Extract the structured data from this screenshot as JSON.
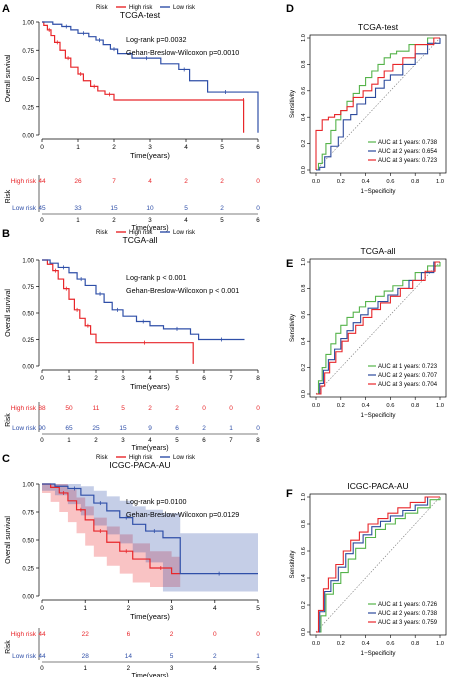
{
  "colors": {
    "high": "#e8262a",
    "low": "#2f4fa8",
    "auc1": "#55b34a",
    "auc2": "#2c4a9c",
    "auc3": "#e8262a",
    "axis": "#000000"
  },
  "chart_data": [
    {
      "panel": "A",
      "type": "line",
      "title": "TCGA-test",
      "legend_title": "Risk",
      "legend": [
        "High risk",
        "Low risk"
      ],
      "xlabel": "Time(years)",
      "ylabel": "Overall survival",
      "xlim": [
        0,
        6
      ],
      "ylim": [
        0,
        1
      ],
      "xticks": [
        0,
        1,
        2,
        3,
        4,
        5,
        6
      ],
      "yticks": [
        "0.00",
        "0.25",
        "0.50",
        "0.75",
        "1.00"
      ],
      "annotations": [
        "Log-rank p=0.0032",
        "Gehan-Breslow-Wilcoxon p=0.0010"
      ],
      "series": [
        {
          "name": "High risk",
          "x": [
            0,
            0.05,
            0.15,
            0.25,
            0.35,
            0.5,
            0.65,
            0.8,
            1.0,
            1.15,
            1.35,
            1.55,
            1.75,
            2.0,
            5.6,
            5.6
          ],
          "y": [
            1.0,
            0.97,
            0.93,
            0.88,
            0.82,
            0.75,
            0.68,
            0.6,
            0.54,
            0.48,
            0.43,
            0.39,
            0.36,
            0.31,
            0.31,
            0.02
          ]
        },
        {
          "name": "Low risk",
          "x": [
            0,
            0.3,
            0.55,
            0.8,
            1.0,
            1.3,
            1.5,
            1.7,
            1.9,
            2.1,
            2.5,
            3.3,
            3.8,
            4.1,
            4.6,
            5.6,
            6.0
          ],
          "y": [
            1.0,
            0.98,
            0.96,
            0.93,
            0.9,
            0.87,
            0.84,
            0.8,
            0.76,
            0.72,
            0.68,
            0.63,
            0.58,
            0.48,
            0.38,
            0.38,
            0.02
          ]
        }
      ],
      "risk_table": {
        "label": "Risk",
        "times": [
          0,
          1,
          2,
          3,
          4,
          5,
          6
        ],
        "rows": [
          {
            "name": "High risk",
            "values": [
              "44",
              "26",
              "7",
              "4",
              "2",
              "2",
              "0"
            ]
          },
          {
            "name": "Low risk",
            "values": [
              "45",
              "33",
              "15",
              "10",
              "5",
              "2",
              "0"
            ]
          }
        ],
        "xlabel": "Time(years)"
      }
    },
    {
      "panel": "B",
      "type": "line",
      "title": "TCGA-all",
      "legend_title": "Risk",
      "legend": [
        "High risk",
        "Low risk"
      ],
      "xlabel": "Time(years)",
      "ylabel": "Overall survival",
      "xlim": [
        0,
        8
      ],
      "ylim": [
        0,
        1
      ],
      "xticks": [
        0,
        1,
        2,
        3,
        4,
        5,
        6,
        7,
        8
      ],
      "yticks": [
        "0.00",
        "0.25",
        "0.50",
        "0.75",
        "1.00"
      ],
      "annotations": [
        "Log-rank p < 0.001",
        "Gehan-Breslow-Wilcoxon p < 0.001"
      ],
      "series": [
        {
          "name": "High risk",
          "x": [
            0,
            0.2,
            0.4,
            0.6,
            0.8,
            1.0,
            1.2,
            1.4,
            1.6,
            1.8,
            2.0,
            5.6,
            5.6
          ],
          "y": [
            1.0,
            0.96,
            0.9,
            0.82,
            0.73,
            0.63,
            0.53,
            0.45,
            0.38,
            0.3,
            0.22,
            0.22,
            0.02
          ]
        },
        {
          "name": "Low risk",
          "x": [
            0,
            0.3,
            0.6,
            1.0,
            1.3,
            1.6,
            2.0,
            2.3,
            2.6,
            3.0,
            3.5,
            4.0,
            4.5,
            5.5,
            5.8,
            7.5
          ],
          "y": [
            1.0,
            0.97,
            0.93,
            0.88,
            0.82,
            0.76,
            0.68,
            0.6,
            0.53,
            0.47,
            0.42,
            0.38,
            0.35,
            0.3,
            0.25,
            0.25
          ]
        }
      ],
      "risk_table": {
        "label": "Risk",
        "times": [
          0,
          1,
          2,
          3,
          4,
          5,
          6,
          7,
          8
        ],
        "rows": [
          {
            "name": "High risk",
            "values": [
              "88",
              "50",
              "11",
              "5",
              "2",
              "2",
              "0",
              "0",
              "0"
            ]
          },
          {
            "name": "Low risk",
            "values": [
              "90",
              "65",
              "25",
              "15",
              "9",
              "6",
              "2",
              "1",
              "0"
            ]
          }
        ],
        "xlabel": "Time(years)"
      }
    },
    {
      "panel": "C",
      "type": "area",
      "title": "ICGC-PACA-AU",
      "legend_title": "Risk",
      "legend": [
        "High risk",
        "Low risk"
      ],
      "xlabel": "Time(years)",
      "ylabel": "Overall survival",
      "xlim": [
        0,
        5
      ],
      "ylim": [
        0,
        1
      ],
      "xticks": [
        0,
        1,
        2,
        3,
        4,
        5
      ],
      "yticks": [
        "0.00",
        "0.25",
        "0.50",
        "0.75",
        "1.00"
      ],
      "annotations": [
        "Log-rank p=0.0100",
        "Gehan-Breslow-Wilcoxon p=0.0129"
      ],
      "series": [
        {
          "name": "High risk",
          "x": [
            0,
            0.2,
            0.4,
            0.6,
            0.8,
            1.0,
            1.2,
            1.5,
            1.8,
            2.1,
            2.5,
            3.0,
            3.2
          ],
          "y": [
            1.0,
            0.97,
            0.92,
            0.85,
            0.77,
            0.68,
            0.58,
            0.48,
            0.4,
            0.33,
            0.25,
            0.2,
            0.2
          ],
          "lower": [
            1.0,
            0.92,
            0.84,
            0.75,
            0.66,
            0.56,
            0.45,
            0.35,
            0.27,
            0.2,
            0.12,
            0.08,
            0.08
          ],
          "upper": [
            1.0,
            1.0,
            1.0,
            0.95,
            0.88,
            0.8,
            0.7,
            0.62,
            0.55,
            0.47,
            0.4,
            0.35,
            0.35
          ]
        },
        {
          "name": "Low risk",
          "x": [
            0,
            0.3,
            0.6,
            0.9,
            1.2,
            1.5,
            1.8,
            2.1,
            2.4,
            2.8,
            3.2,
            5.0
          ],
          "y": [
            1.0,
            0.98,
            0.96,
            0.9,
            0.83,
            0.76,
            0.7,
            0.64,
            0.58,
            0.52,
            0.2,
            0.2
          ],
          "lower": [
            1.0,
            0.94,
            0.9,
            0.82,
            0.72,
            0.63,
            0.55,
            0.47,
            0.39,
            0.3,
            0.04,
            0.04
          ],
          "upper": [
            1.0,
            1.0,
            1.0,
            0.98,
            0.94,
            0.89,
            0.85,
            0.8,
            0.77,
            0.74,
            0.56,
            0.56
          ]
        }
      ],
      "risk_table": {
        "label": "Risk",
        "times": [
          0,
          1,
          2,
          3,
          4,
          5
        ],
        "rows": [
          {
            "name": "High risk",
            "values": [
              "44",
              "22",
              "6",
              "2",
              "0",
              "0"
            ]
          },
          {
            "name": "Low risk",
            "values": [
              "44",
              "28",
              "14",
              "5",
              "2",
              "1"
            ]
          }
        ],
        "xlabel": "Time(years)"
      }
    },
    {
      "panel": "D",
      "type": "line",
      "title": "TCGA-test",
      "xlabel": "1−Specificity",
      "ylabel": "Sensitivity",
      "xlim": [
        0,
        1
      ],
      "ylim": [
        0,
        1
      ],
      "xticks": [
        "0.0",
        "0.2",
        "0.4",
        "0.6",
        "0.8",
        "1.0"
      ],
      "yticks": [
        "0.0",
        "0.2",
        "0.4",
        "0.6",
        "0.8",
        "1.0"
      ],
      "legend": [
        "AUC at 1 years: 0.738",
        "AUC at 2 years: 0.654",
        "AUC at 3 years: 0.723"
      ],
      "series": [
        {
          "x": [
            0,
            0.02,
            0.05,
            0.08,
            0.12,
            0.16,
            0.2,
            0.25,
            0.3,
            0.35,
            0.4,
            0.45,
            0.5,
            0.55,
            0.6,
            0.65,
            0.75,
            0.9,
            1.0
          ],
          "y": [
            0,
            0.05,
            0.12,
            0.2,
            0.3,
            0.38,
            0.45,
            0.52,
            0.58,
            0.64,
            0.7,
            0.75,
            0.8,
            0.85,
            0.88,
            0.9,
            0.95,
            1.0,
            1.0
          ]
        },
        {
          "x": [
            0,
            0.03,
            0.07,
            0.12,
            0.18,
            0.22,
            0.28,
            0.33,
            0.4,
            0.48,
            0.55,
            0.6,
            0.7,
            0.8,
            0.9,
            1.0
          ],
          "y": [
            0,
            0.02,
            0.1,
            0.18,
            0.25,
            0.38,
            0.42,
            0.5,
            0.55,
            0.62,
            0.68,
            0.72,
            0.8,
            0.88,
            0.96,
            1.0
          ]
        },
        {
          "x": [
            0,
            0.0,
            0.05,
            0.1,
            0.15,
            0.2,
            0.25,
            0.3,
            0.38,
            0.45,
            0.5,
            0.55,
            0.62,
            0.7,
            0.8,
            0.95,
            1.0
          ],
          "y": [
            0,
            0.3,
            0.38,
            0.4,
            0.42,
            0.45,
            0.48,
            0.55,
            0.6,
            0.65,
            0.7,
            0.75,
            0.8,
            0.85,
            0.95,
            1.0,
            1.0
          ]
        }
      ]
    },
    {
      "panel": "E",
      "type": "line",
      "title": "TCGA-all",
      "xlabel": "1−Specificity",
      "ylabel": "Sensitivity",
      "xlim": [
        0,
        1
      ],
      "ylim": [
        0,
        1
      ],
      "xticks": [
        "0.0",
        "0.2",
        "0.4",
        "0.6",
        "0.8",
        "1.0"
      ],
      "yticks": [
        "0.0",
        "0.2",
        "0.4",
        "0.6",
        "0.8",
        "1.0"
      ],
      "legend": [
        "AUC at 1 years: 0.723",
        "AUC at 2 years: 0.707",
        "AUC at 3 years: 0.704"
      ],
      "series": [
        {
          "x": [
            0,
            0.02,
            0.05,
            0.08,
            0.12,
            0.16,
            0.2,
            0.25,
            0.3,
            0.35,
            0.4,
            0.48,
            0.55,
            0.62,
            0.7,
            0.8,
            0.9,
            1.0
          ],
          "y": [
            0,
            0.1,
            0.2,
            0.3,
            0.38,
            0.46,
            0.52,
            0.58,
            0.62,
            0.66,
            0.7,
            0.74,
            0.78,
            0.82,
            0.86,
            0.92,
            0.97,
            1.0
          ]
        },
        {
          "x": [
            0,
            0.03,
            0.06,
            0.1,
            0.15,
            0.2,
            0.25,
            0.3,
            0.36,
            0.42,
            0.5,
            0.58,
            0.66,
            0.75,
            0.85,
            0.95,
            1.0
          ],
          "y": [
            0,
            0.08,
            0.18,
            0.26,
            0.34,
            0.42,
            0.48,
            0.54,
            0.6,
            0.65,
            0.7,
            0.75,
            0.8,
            0.86,
            0.92,
            1.0,
            1.0
          ]
        },
        {
          "x": [
            0,
            0.04,
            0.07,
            0.11,
            0.16,
            0.21,
            0.26,
            0.32,
            0.38,
            0.45,
            0.52,
            0.6,
            0.68,
            0.78,
            0.88,
            0.96,
            1.0
          ],
          "y": [
            0,
            0.06,
            0.16,
            0.24,
            0.32,
            0.4,
            0.46,
            0.52,
            0.58,
            0.64,
            0.69,
            0.74,
            0.8,
            0.86,
            0.93,
            1.0,
            1.0
          ]
        }
      ]
    },
    {
      "panel": "F",
      "type": "line",
      "title": "ICGC-PACA-AU",
      "xlabel": "1−Specificity",
      "ylabel": "Sensitivity",
      "xlim": [
        0,
        1
      ],
      "ylim": [
        0,
        1
      ],
      "xticks": [
        "0.0",
        "0.2",
        "0.4",
        "0.6",
        "0.8",
        "1.0"
      ],
      "yticks": [
        "0.0",
        "0.2",
        "0.4",
        "0.6",
        "0.8",
        "1.0"
      ],
      "legend": [
        "AUC at 1 years: 0.726",
        "AUC at 2 years: 0.738",
        "AUC at 3 years: 0.759"
      ],
      "series": [
        {
          "x": [
            0,
            0.04,
            0.08,
            0.14,
            0.2,
            0.26,
            0.32,
            0.4,
            0.48,
            0.56,
            0.64,
            0.72,
            0.82,
            0.92,
            1.0
          ],
          "y": [
            0,
            0.12,
            0.28,
            0.36,
            0.44,
            0.54,
            0.62,
            0.7,
            0.76,
            0.8,
            0.84,
            0.88,
            0.92,
            0.98,
            1.0
          ]
        },
        {
          "x": [
            0,
            0.03,
            0.07,
            0.12,
            0.18,
            0.24,
            0.3,
            0.38,
            0.45,
            0.52,
            0.6,
            0.7,
            0.8,
            0.9,
            1.0
          ],
          "y": [
            0,
            0.15,
            0.3,
            0.38,
            0.48,
            0.58,
            0.66,
            0.72,
            0.78,
            0.82,
            0.86,
            0.9,
            0.94,
            1.0,
            1.0
          ]
        },
        {
          "x": [
            0,
            0.02,
            0.06,
            0.1,
            0.16,
            0.22,
            0.28,
            0.35,
            0.42,
            0.5,
            0.58,
            0.66,
            0.76,
            0.88,
            1.0
          ],
          "y": [
            0,
            0.16,
            0.32,
            0.4,
            0.5,
            0.6,
            0.68,
            0.74,
            0.8,
            0.84,
            0.88,
            0.92,
            0.96,
            1.0,
            1.0
          ]
        }
      ]
    }
  ]
}
